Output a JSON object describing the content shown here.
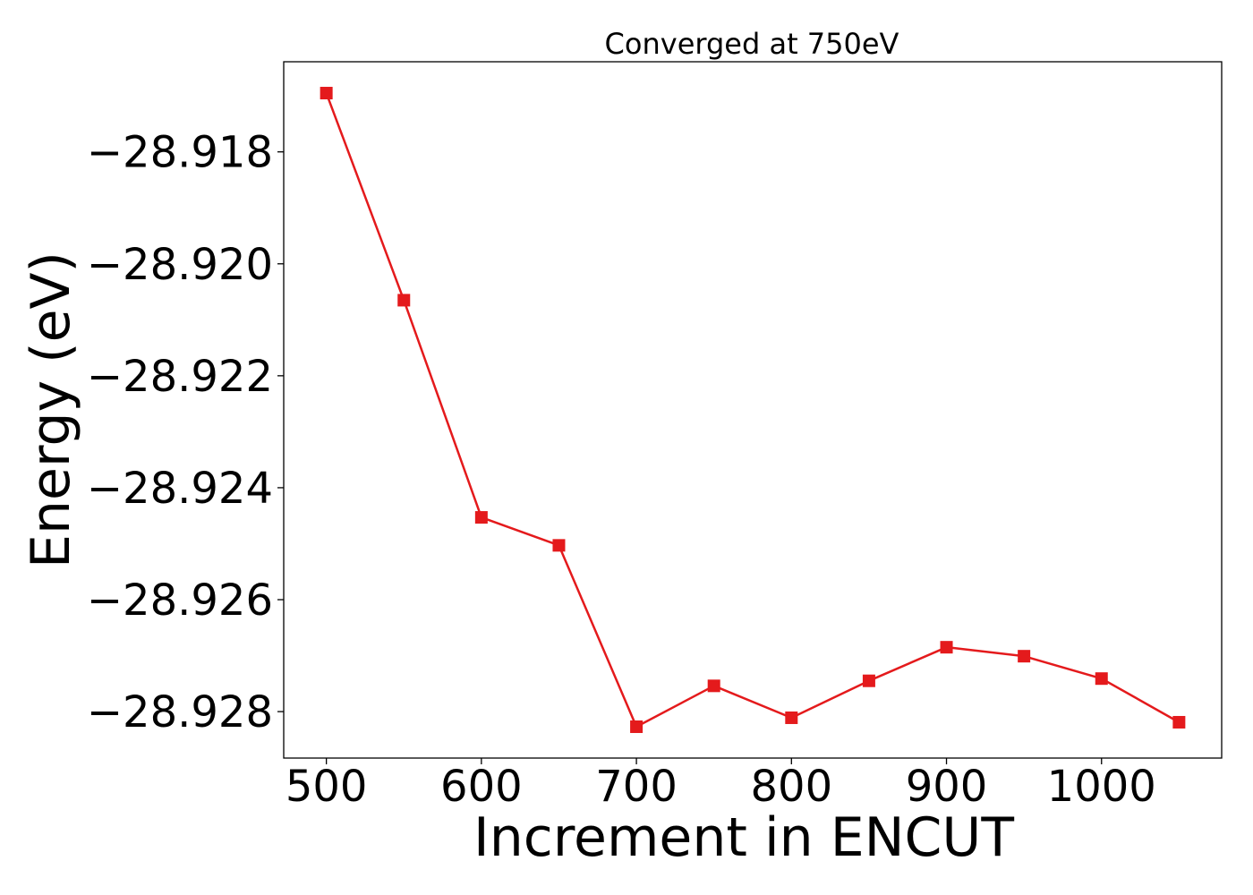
{
  "chart_data": {
    "type": "line",
    "title": "Converged at 750eV",
    "xlabel": "Increment in ENCUT",
    "ylabel": "Energy (eV)",
    "x": [
      500,
      550,
      600,
      650,
      700,
      750,
      800,
      850,
      900,
      950,
      1000,
      1050
    ],
    "series": [
      {
        "values": [
          -28.91695,
          -28.92065,
          -28.92453,
          -28.92503,
          -28.92827,
          -28.92754,
          -28.92811,
          -28.92745,
          -28.92685,
          -28.92701,
          -28.92741,
          -28.92819
        ],
        "color": "#e41a1c",
        "marker": "square"
      }
    ],
    "xlim": [
      472.5,
      1077.5
    ],
    "ylim": [
      -28.92883,
      -28.91639
    ],
    "xticks": [
      500,
      600,
      700,
      800,
      900,
      1000
    ],
    "xtick_labels": [
      "500",
      "600",
      "700",
      "800",
      "900",
      "1000"
    ],
    "yticks": [
      -28.918,
      -28.92,
      -28.922,
      -28.924,
      -28.926,
      -28.928
    ],
    "ytick_labels": [
      "−28.918",
      "−28.920",
      "−28.922",
      "−28.924",
      "−28.926",
      "−28.928"
    ],
    "grid": false,
    "legend": "none"
  }
}
